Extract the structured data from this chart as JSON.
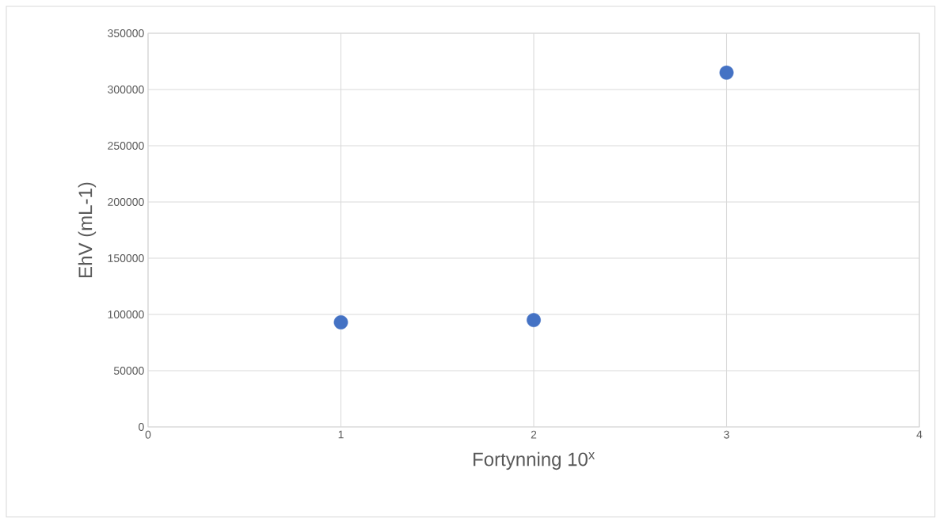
{
  "chart_data": {
    "type": "scatter",
    "xlabel": "Fortynning 10$^{x}$",
    "ylabel": "EhV (mL-1)",
    "x": [
      1,
      2,
      3
    ],
    "values": [
      93000,
      95000,
      315000
    ],
    "color": "#4472c4",
    "marker": "circle",
    "grid": true,
    "xlim": [
      0,
      4
    ],
    "xticks": [
      0,
      1,
      2,
      3,
      4
    ],
    "ylim": [
      0,
      350000
    ],
    "yticks": [
      0,
      50000,
      100000,
      150000,
      200000,
      250000,
      300000,
      350000
    ]
  }
}
